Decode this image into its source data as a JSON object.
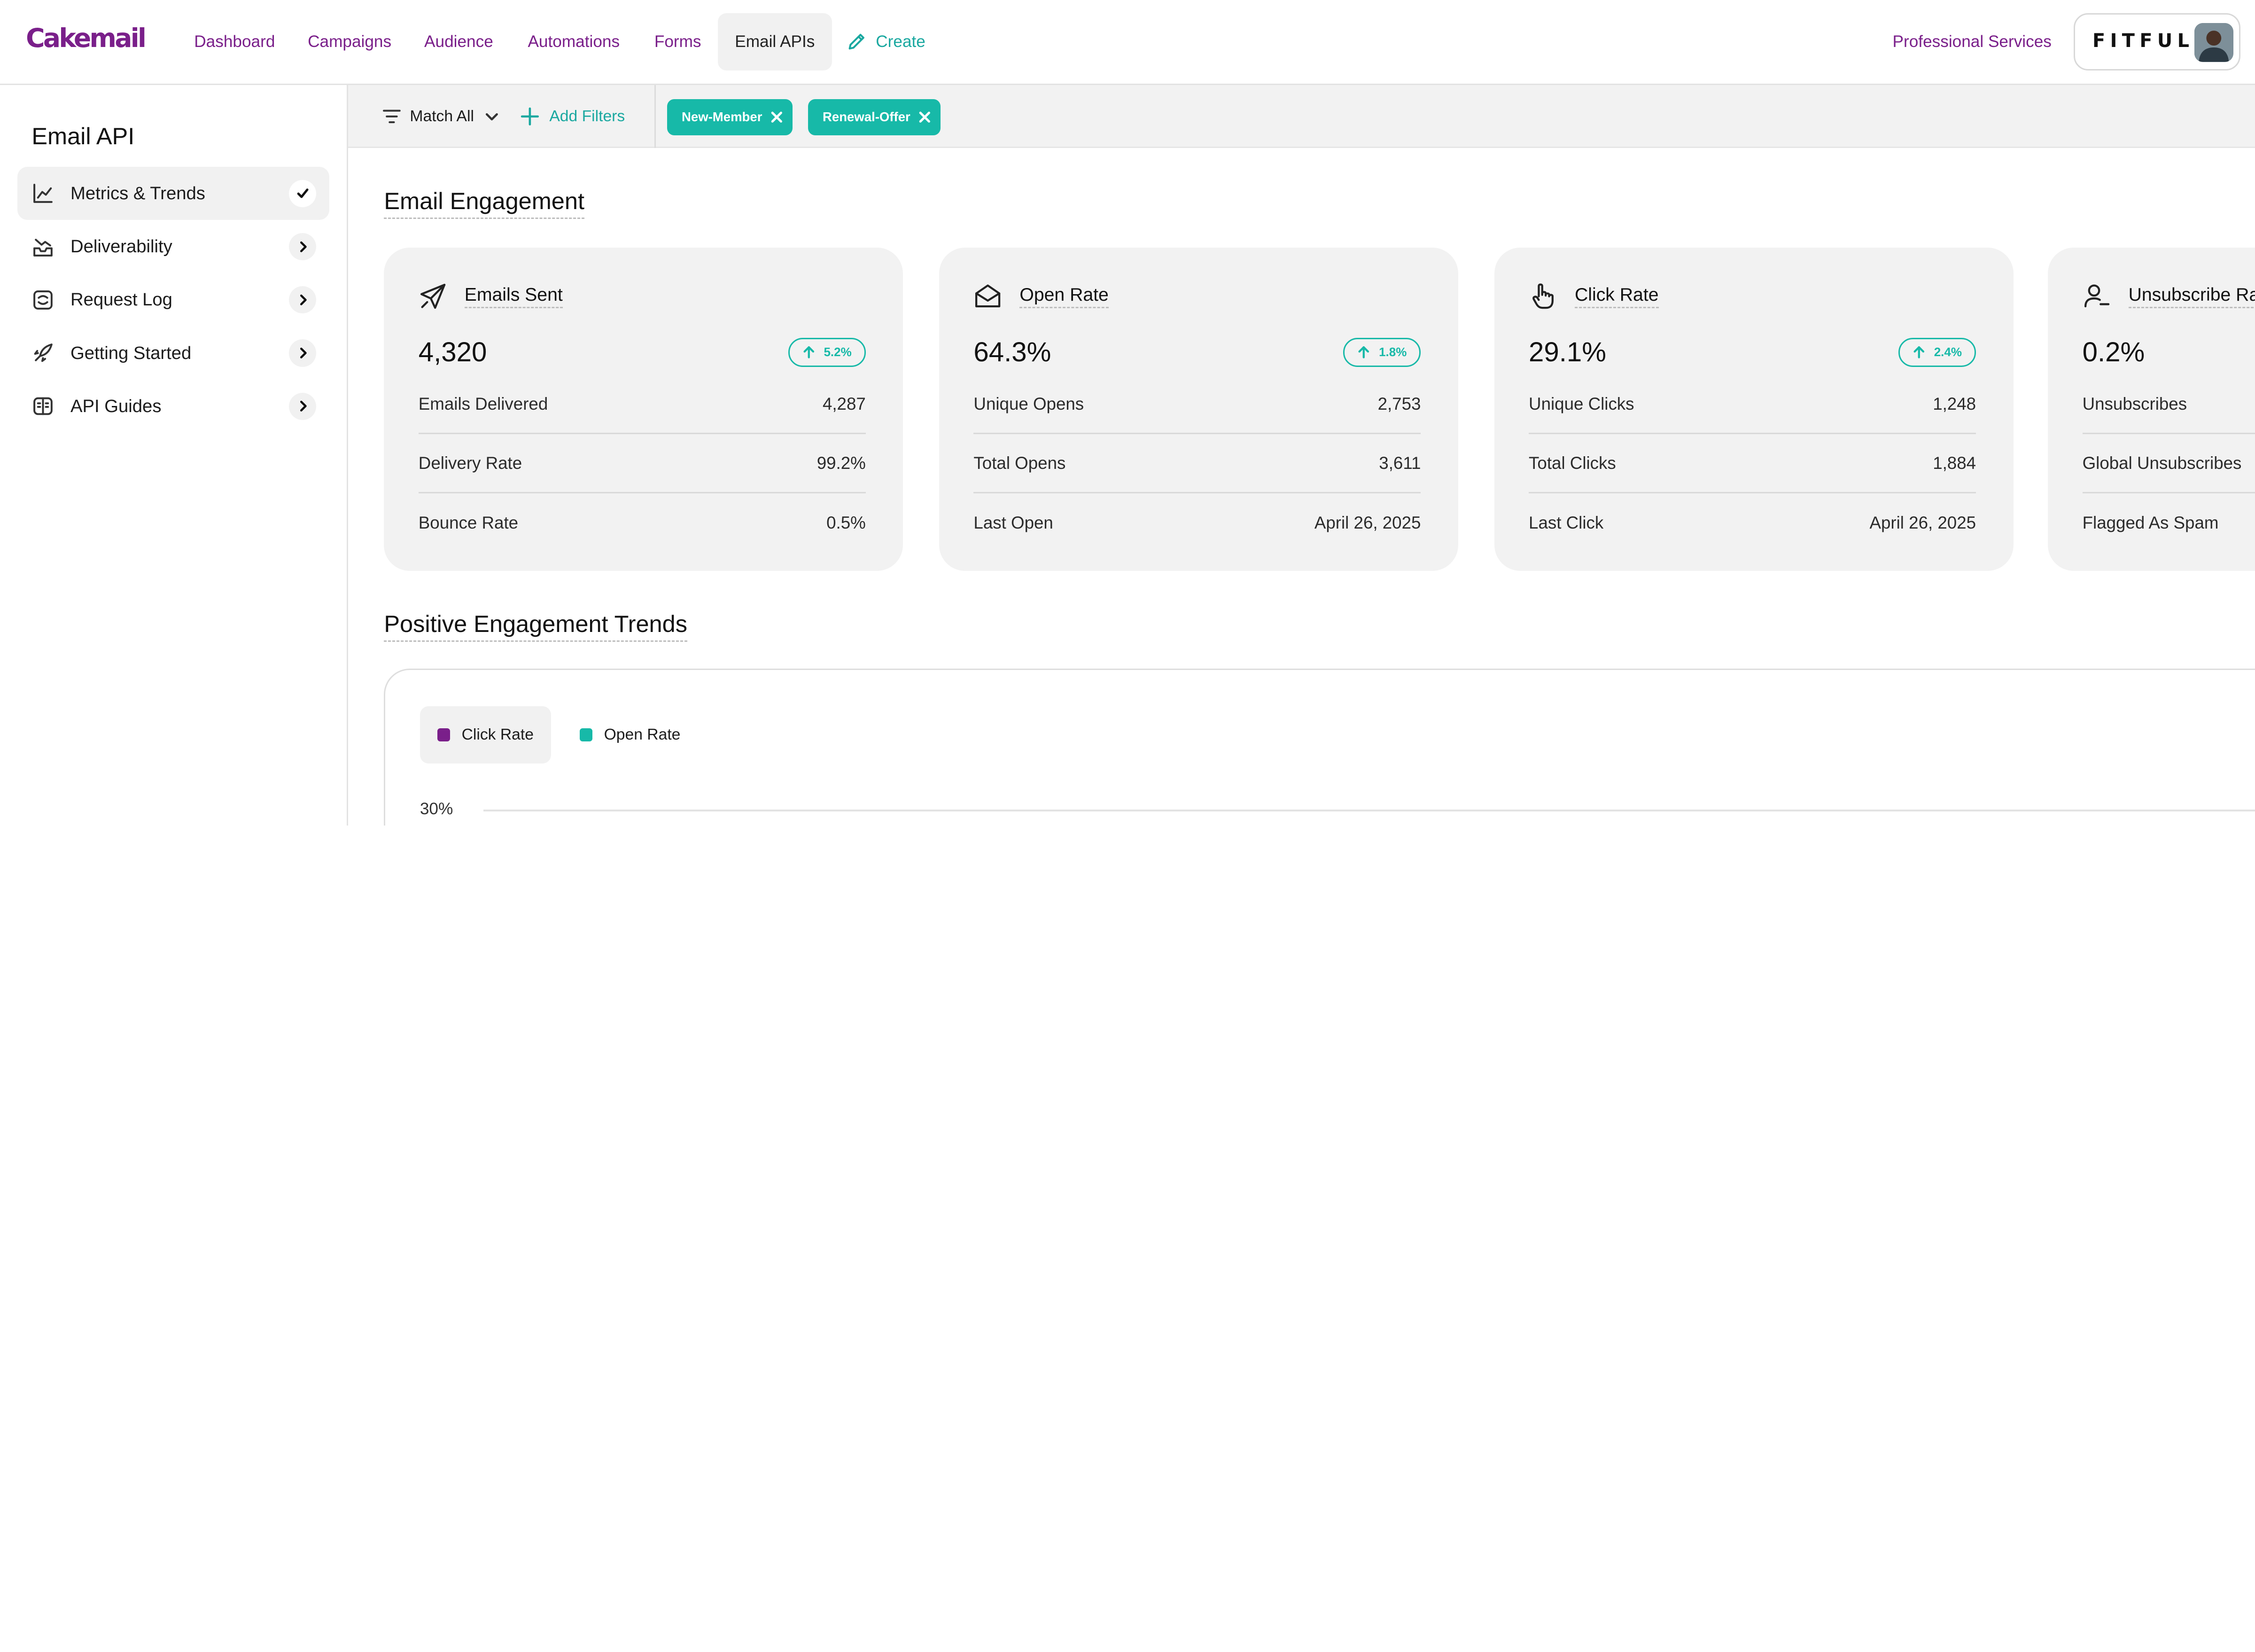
{
  "colors": {
    "brand": "#7a1f8a",
    "accent": "#17b9a8",
    "click_rate": "#7a1f8a",
    "open_rate": "#17b9a8"
  },
  "nav": {
    "logo": "Cakemail",
    "items": [
      "Dashboard",
      "Campaigns",
      "Audience",
      "Automations",
      "Forms",
      "Email APIs"
    ],
    "active": "Email APIs",
    "create_label": "Create",
    "professional_services": "Professional Services",
    "brand_name": "FITFUL"
  },
  "sidebar": {
    "title": "Email API",
    "items": [
      {
        "label": "Metrics & Trends",
        "icon": "line-chart-icon",
        "active": true
      },
      {
        "label": "Deliverability",
        "icon": "inbox-trend-icon",
        "active": false
      },
      {
        "label": "Request Log",
        "icon": "log-icon",
        "active": false
      },
      {
        "label": "Getting Started",
        "icon": "rocket-icon",
        "active": false
      },
      {
        "label": "API Guides",
        "icon": "book-icon",
        "active": false
      }
    ]
  },
  "filters": {
    "match_label": "Match All",
    "add_label": "Add Filters",
    "chips": [
      "New-Member",
      "Renewal-Offer"
    ]
  },
  "engagement": {
    "title": "Email Engagement",
    "cards": [
      {
        "title": "Emails Sent",
        "icon": "paper-plane-icon",
        "value": "4,320",
        "trend": "5.2%",
        "rows": [
          {
            "label": "Emails Delivered",
            "value": "4,287"
          },
          {
            "label": "Delivery Rate",
            "value": "99.2%"
          },
          {
            "label": "Bounce Rate",
            "value": "0.5%"
          }
        ]
      },
      {
        "title": "Open Rate",
        "icon": "open-envelope-icon",
        "value": "64.3%",
        "trend": "1.8%",
        "rows": [
          {
            "label": "Unique Opens",
            "value": "2,753"
          },
          {
            "label": "Total Opens",
            "value": "3,611"
          },
          {
            "label": "Last Open",
            "value": "April 26, 2025"
          }
        ]
      },
      {
        "title": "Click Rate",
        "icon": "pointer-hand-icon",
        "value": "29.1%",
        "trend": "2.4%",
        "rows": [
          {
            "label": "Unique Clicks",
            "value": "1,248"
          },
          {
            "label": "Total Clicks",
            "value": "1,884"
          },
          {
            "label": "Last Click",
            "value": "April 26, 2025"
          }
        ]
      },
      {
        "title": "Unsubscribe Rate",
        "icon": "user-remove-icon",
        "value": "0.2%",
        "trend": "",
        "rows": [
          {
            "label": "Unsubscribes",
            "value": ""
          },
          {
            "label": "Global Unsubscribes",
            "value": ""
          },
          {
            "label": "Flagged As Spam",
            "value": ""
          }
        ]
      }
    ]
  },
  "trends": {
    "title": "Positive Engagement Trends",
    "legend": [
      "Click Rate",
      "Open Rate"
    ],
    "active_legend": "Click Rate"
  },
  "chart_data": {
    "type": "line",
    "title": "Positive Engagement Trends",
    "series": [
      {
        "name": "Click Rate",
        "values": []
      },
      {
        "name": "Open Rate",
        "values": []
      }
    ],
    "y_ticks": [
      "30%"
    ],
    "grid": true,
    "legend_position": "top-left"
  }
}
